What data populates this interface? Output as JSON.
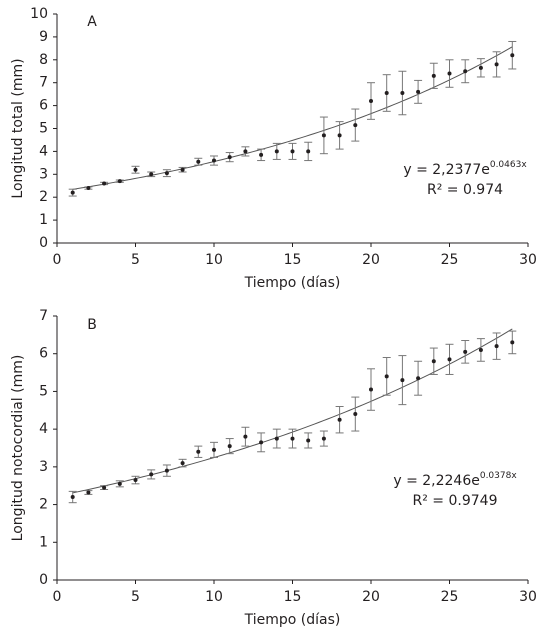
{
  "chart_data": [
    {
      "type": "scatter",
      "panel": "A",
      "xlabel": "Tiempo (días)",
      "ylabel": "Longitud total (mm)",
      "xlim": [
        0,
        30
      ],
      "xticks": [
        0,
        5,
        10,
        15,
        20,
        25,
        30
      ],
      "ylim": [
        0,
        10
      ],
      "yticks": [
        0,
        1,
        2,
        3,
        4,
        5,
        6,
        7,
        8,
        9,
        10
      ],
      "x": [
        1,
        2,
        3,
        4,
        5,
        6,
        7,
        8,
        9,
        10,
        11,
        12,
        13,
        14,
        15,
        16,
        17,
        18,
        19,
        20,
        21,
        22,
        23,
        24,
        25,
        26,
        27,
        28,
        29
      ],
      "values": [
        2.2,
        2.4,
        2.6,
        2.7,
        3.2,
        3.0,
        3.05,
        3.2,
        3.55,
        3.6,
        3.75,
        4.0,
        3.85,
        4.0,
        4.0,
        4.0,
        4.7,
        4.7,
        5.15,
        6.2,
        6.55,
        6.55,
        6.6,
        7.3,
        7.4,
        7.5,
        7.65,
        7.8,
        8.2
      ],
      "errors": [
        0.15,
        0.05,
        0.05,
        0.05,
        0.15,
        0.1,
        0.15,
        0.1,
        0.15,
        0.2,
        0.2,
        0.2,
        0.25,
        0.35,
        0.35,
        0.4,
        0.8,
        0.6,
        0.7,
        0.8,
        0.8,
        0.95,
        0.5,
        0.55,
        0.6,
        0.5,
        0.4,
        0.55,
        0.6
      ],
      "color": "#231f20",
      "trendline": {
        "a": 2.2377,
        "b": 0.0463,
        "equation": "y = 2,2377e",
        "exponent": "0.0463x",
        "r2": "R² = 0.974"
      }
    },
    {
      "type": "scatter",
      "panel": "B",
      "xlabel": "Tiempo (días)",
      "ylabel": "Longitud notocordial (mm)",
      "xlim": [
        0,
        30
      ],
      "xticks": [
        0,
        5,
        10,
        15,
        20,
        25,
        30
      ],
      "ylim": [
        0,
        7
      ],
      "yticks": [
        0,
        1,
        2,
        3,
        4,
        5,
        6,
        7
      ],
      "x": [
        1,
        2,
        3,
        4,
        5,
        6,
        7,
        8,
        9,
        10,
        11,
        12,
        13,
        14,
        15,
        16,
        17,
        18,
        19,
        20,
        21,
        22,
        23,
        24,
        25,
        26,
        27,
        28,
        29
      ],
      "values": [
        2.2,
        2.32,
        2.45,
        2.55,
        2.65,
        2.8,
        2.9,
        3.1,
        3.4,
        3.45,
        3.55,
        3.8,
        3.65,
        3.75,
        3.75,
        3.7,
        3.75,
        4.25,
        4.4,
        5.05,
        5.4,
        5.3,
        5.35,
        5.8,
        5.85,
        6.05,
        6.1,
        6.2,
        6.3
      ],
      "errors": [
        0.15,
        0.05,
        0.05,
        0.08,
        0.1,
        0.12,
        0.15,
        0.1,
        0.15,
        0.2,
        0.2,
        0.25,
        0.25,
        0.25,
        0.25,
        0.2,
        0.2,
        0.35,
        0.45,
        0.55,
        0.5,
        0.65,
        0.45,
        0.35,
        0.4,
        0.3,
        0.3,
        0.35,
        0.3
      ],
      "color": "#231f20",
      "trendline": {
        "a": 2.2246,
        "b": 0.0378,
        "equation": "y = 2,2246e",
        "exponent": "0.0378x",
        "r2": "R² = 0.9749"
      }
    }
  ]
}
